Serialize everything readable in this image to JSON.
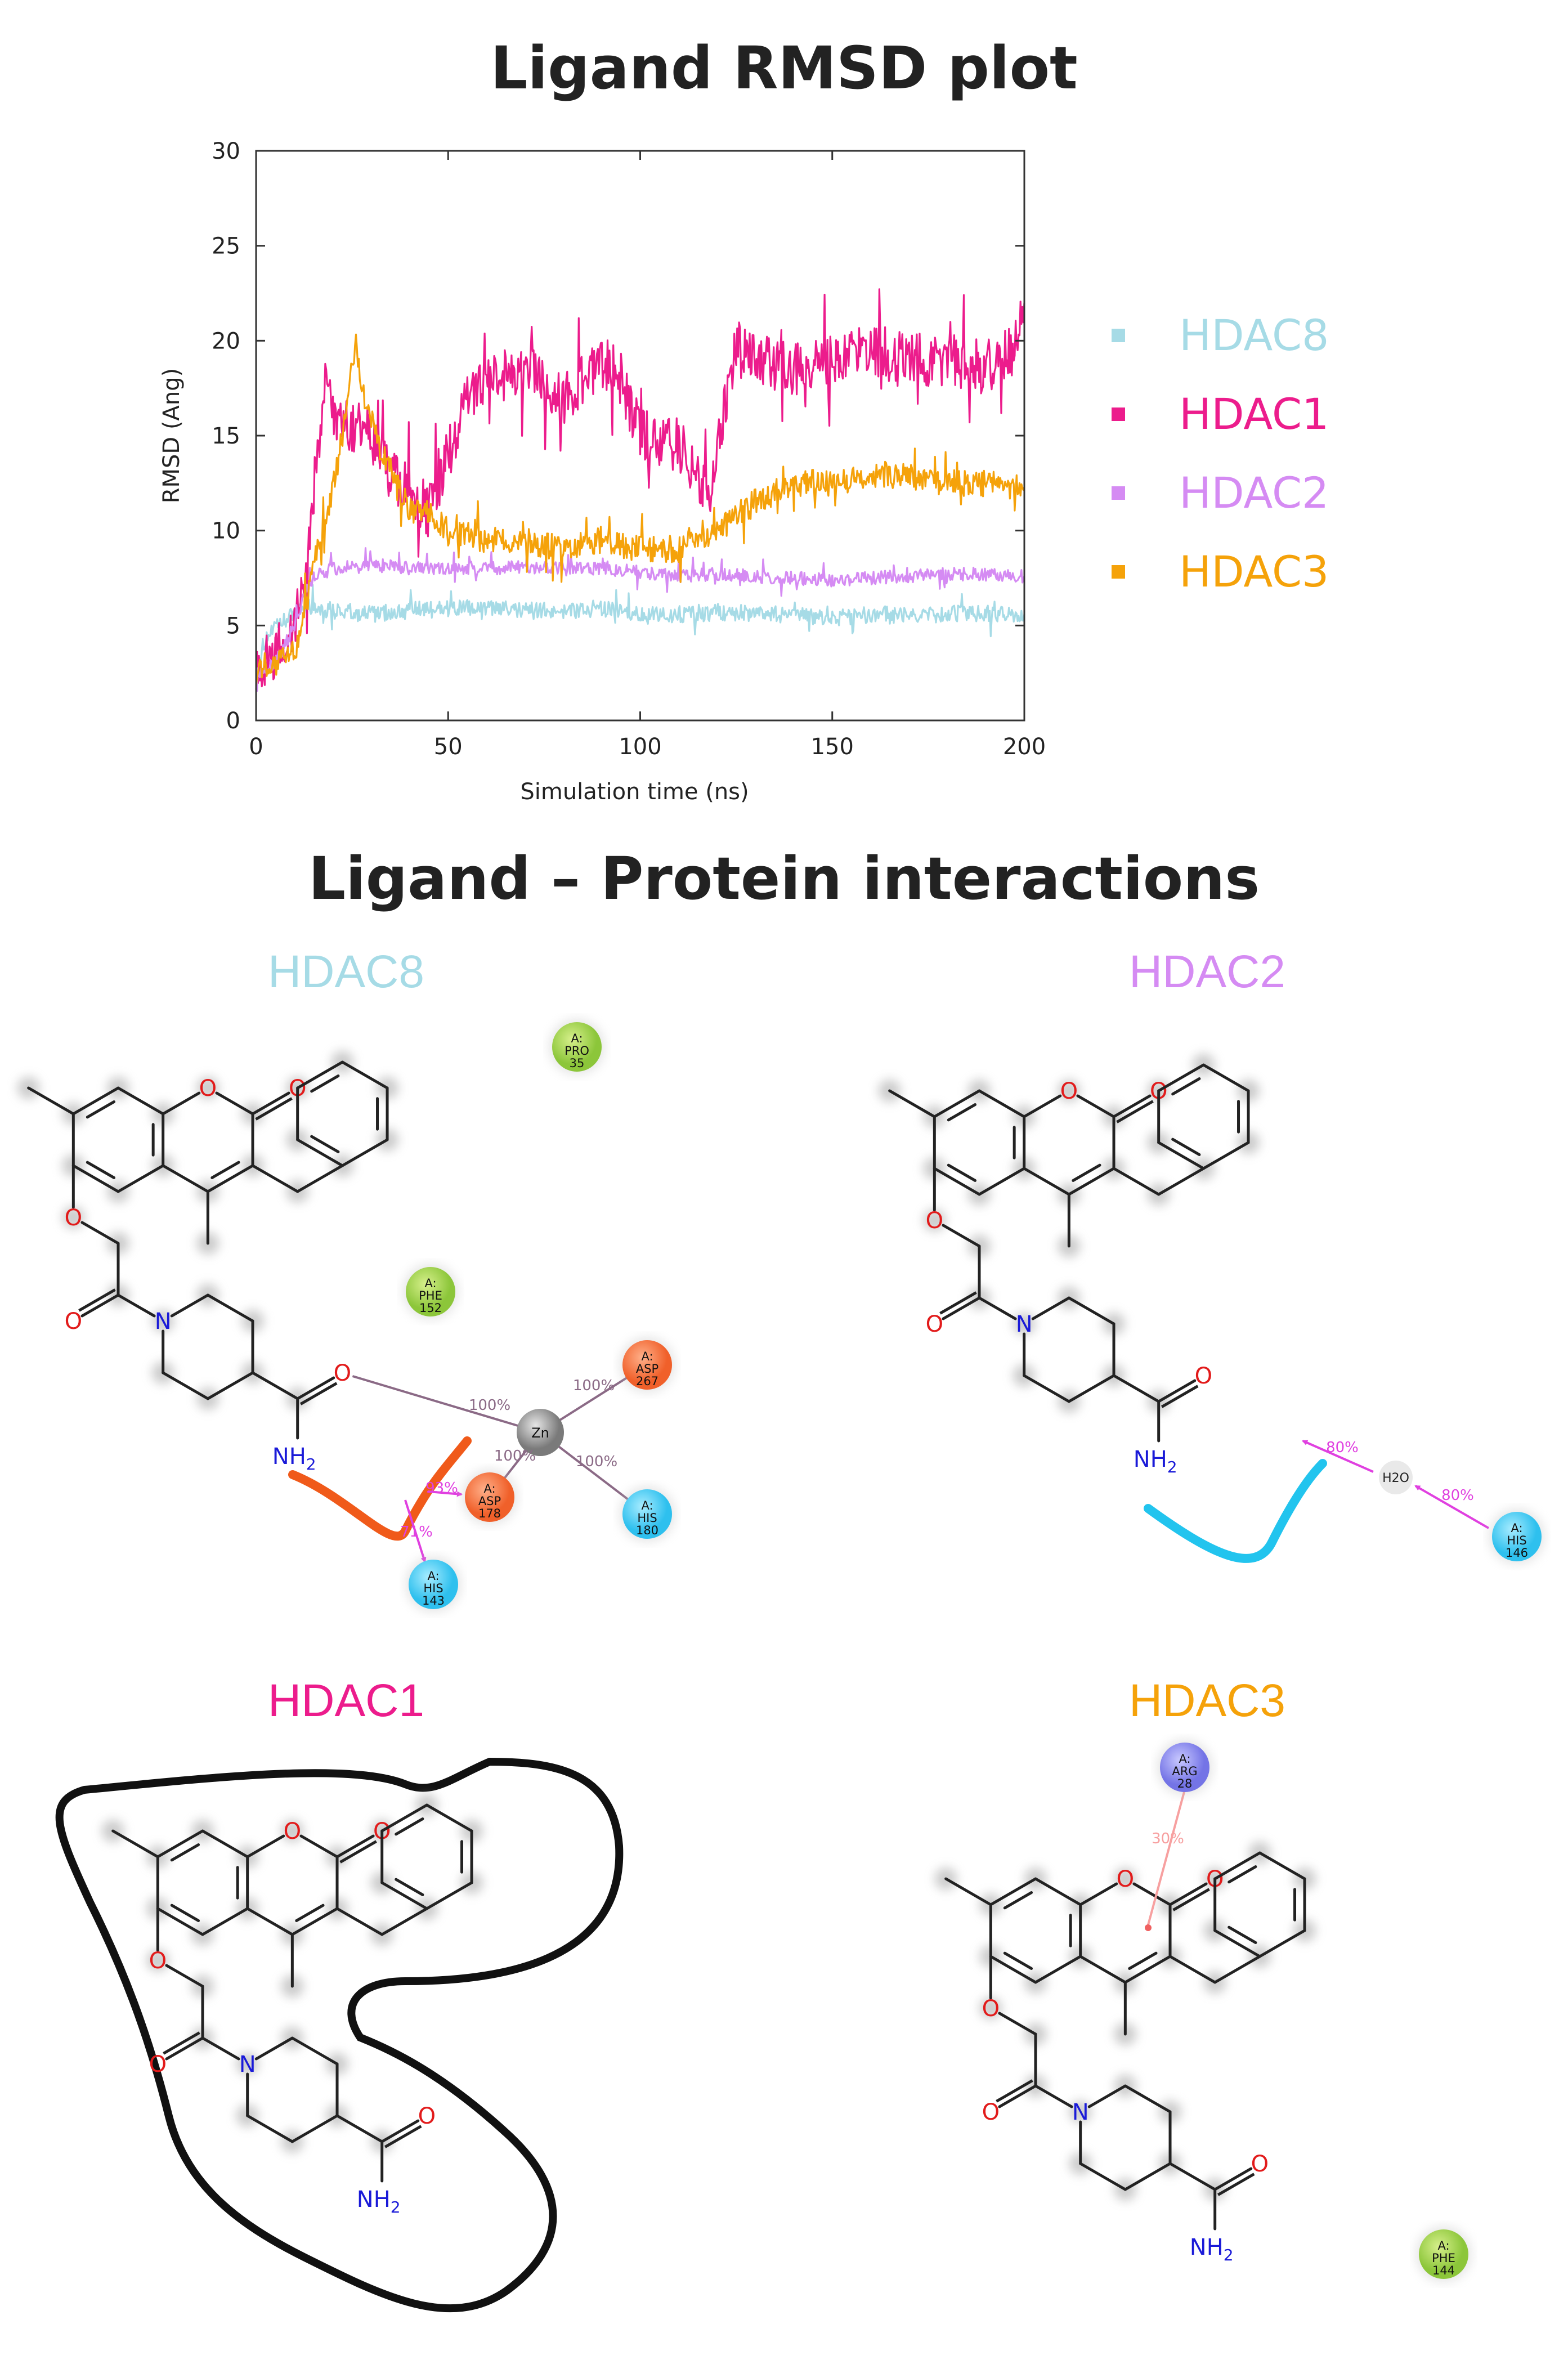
{
  "page": {
    "title": "Ligand RMSD plot",
    "subtitle": "Ligand – Protein interactions"
  },
  "colors": {
    "HDAC8": "#a6dbe6",
    "HDAC1": "#ec1c8c",
    "HDAC2": "#d58bf3",
    "HDAC3": "#f5a20a"
  },
  "chart_data": {
    "type": "line",
    "title": "Ligand RMSD plot",
    "xlabel": "Simulation time (ns)",
    "ylabel": "RMSD (Ang)",
    "xlim": [
      0,
      200
    ],
    "ylim": [
      0,
      30
    ],
    "xticks": [
      0,
      50,
      100,
      150,
      200
    ],
    "yticks": [
      0,
      5,
      10,
      15,
      20,
      25,
      30
    ],
    "grid": false,
    "legend_position": "right",
    "series": [
      {
        "name": "HDAC8",
        "color": "#a6dbe6",
        "x": [
          0,
          3,
          6,
          9,
          12,
          15,
          20,
          25,
          30,
          40,
          50,
          60,
          70,
          80,
          90,
          100,
          110,
          120,
          130,
          140,
          150,
          160,
          170,
          180,
          190,
          200
        ],
        "y": [
          3.0,
          4.5,
          5.0,
          5.5,
          6.0,
          6.0,
          5.8,
          5.7,
          5.6,
          5.8,
          5.9,
          5.9,
          5.8,
          5.8,
          5.9,
          5.5,
          5.6,
          5.7,
          5.7,
          5.5,
          5.4,
          5.6,
          5.5,
          5.6,
          5.6,
          5.6
        ]
      },
      {
        "name": "HDAC1",
        "color": "#ec1c8c",
        "x": [
          0,
          5,
          10,
          13,
          16,
          18,
          20,
          25,
          30,
          35,
          40,
          45,
          50,
          55,
          60,
          70,
          80,
          90,
          95,
          100,
          110,
          115,
          118,
          120,
          123,
          125,
          130,
          140,
          150,
          160,
          170,
          180,
          190,
          197,
          200
        ],
        "y": [
          3.0,
          3.5,
          5.0,
          8.0,
          14.0,
          18.0,
          16.0,
          15.5,
          15.0,
          13.0,
          12.0,
          11.0,
          14.0,
          17.0,
          18.0,
          18.5,
          17.0,
          19.0,
          18.0,
          15.0,
          14.5,
          13.0,
          11.5,
          15.0,
          17.0,
          20.0,
          19.0,
          18.5,
          19.0,
          19.5,
          19.0,
          19.0,
          18.5,
          19.5,
          22.0
        ]
      },
      {
        "name": "HDAC2",
        "color": "#d58bf3",
        "x": [
          0,
          5,
          10,
          12,
          15,
          20,
          30,
          40,
          50,
          60,
          70,
          80,
          90,
          100,
          110,
          120,
          130,
          140,
          150,
          160,
          170,
          180,
          190,
          200
        ],
        "y": [
          2.5,
          3.0,
          5.0,
          6.5,
          7.5,
          8.0,
          8.2,
          8.0,
          8.0,
          8.0,
          8.1,
          8.0,
          8.0,
          7.8,
          7.6,
          7.7,
          7.6,
          7.5,
          7.4,
          7.5,
          7.6,
          7.7,
          7.7,
          7.6
        ]
      },
      {
        "name": "HDAC3",
        "color": "#f5a20a",
        "x": [
          0,
          5,
          10,
          13,
          16,
          20,
          24,
          26,
          28,
          32,
          36,
          40,
          45,
          50,
          60,
          70,
          80,
          90,
          100,
          110,
          120,
          130,
          140,
          150,
          160,
          170,
          180,
          190,
          200
        ],
        "y": [
          2.5,
          3.0,
          3.5,
          6.0,
          9.0,
          12.0,
          17.0,
          20.0,
          17.0,
          14.5,
          13.0,
          11.0,
          11.0,
          10.0,
          9.5,
          9.5,
          9.0,
          9.5,
          9.0,
          9.0,
          10.0,
          11.5,
          12.5,
          12.5,
          13.0,
          12.8,
          12.5,
          12.5,
          12.3
        ]
      }
    ]
  },
  "legend": [
    "HDAC8",
    "HDAC1",
    "HDAC2",
    "HDAC3"
  ],
  "panels": {
    "hdac8": {
      "title": "HDAC8",
      "residues": [
        {
          "chain": "A:",
          "name": "PRO",
          "num": "35"
        },
        {
          "chain": "A:",
          "name": "PHE",
          "num": "152"
        },
        {
          "chain": "A:",
          "name": "ASP",
          "num": "267"
        },
        {
          "chain": "A:",
          "name": "ASP",
          "num": "178"
        },
        {
          "chain": "A:",
          "name": "HIS",
          "num": "180"
        },
        {
          "chain": "A:",
          "name": "HIS",
          "num": "143"
        }
      ],
      "zn": "Zn",
      "percents": [
        "100%",
        "100%",
        "100%",
        "100%",
        "93%",
        "71%"
      ]
    },
    "hdac2": {
      "title": "HDAC2",
      "residues": [
        {
          "chain": "A:",
          "name": "HIS",
          "num": "146"
        }
      ],
      "water": "H2O",
      "percents": [
        "80%",
        "80%"
      ]
    },
    "hdac1": {
      "title": "HDAC1"
    },
    "hdac3": {
      "title": "HDAC3",
      "residues": [
        {
          "chain": "A:",
          "name": "ARG",
          "num": "28"
        },
        {
          "chain": "A:",
          "name": "PHE",
          "num": "144"
        }
      ],
      "percents": [
        "30%"
      ]
    }
  },
  "atoms": {
    "O": "O",
    "N": "N",
    "NH2": "NH"
  }
}
